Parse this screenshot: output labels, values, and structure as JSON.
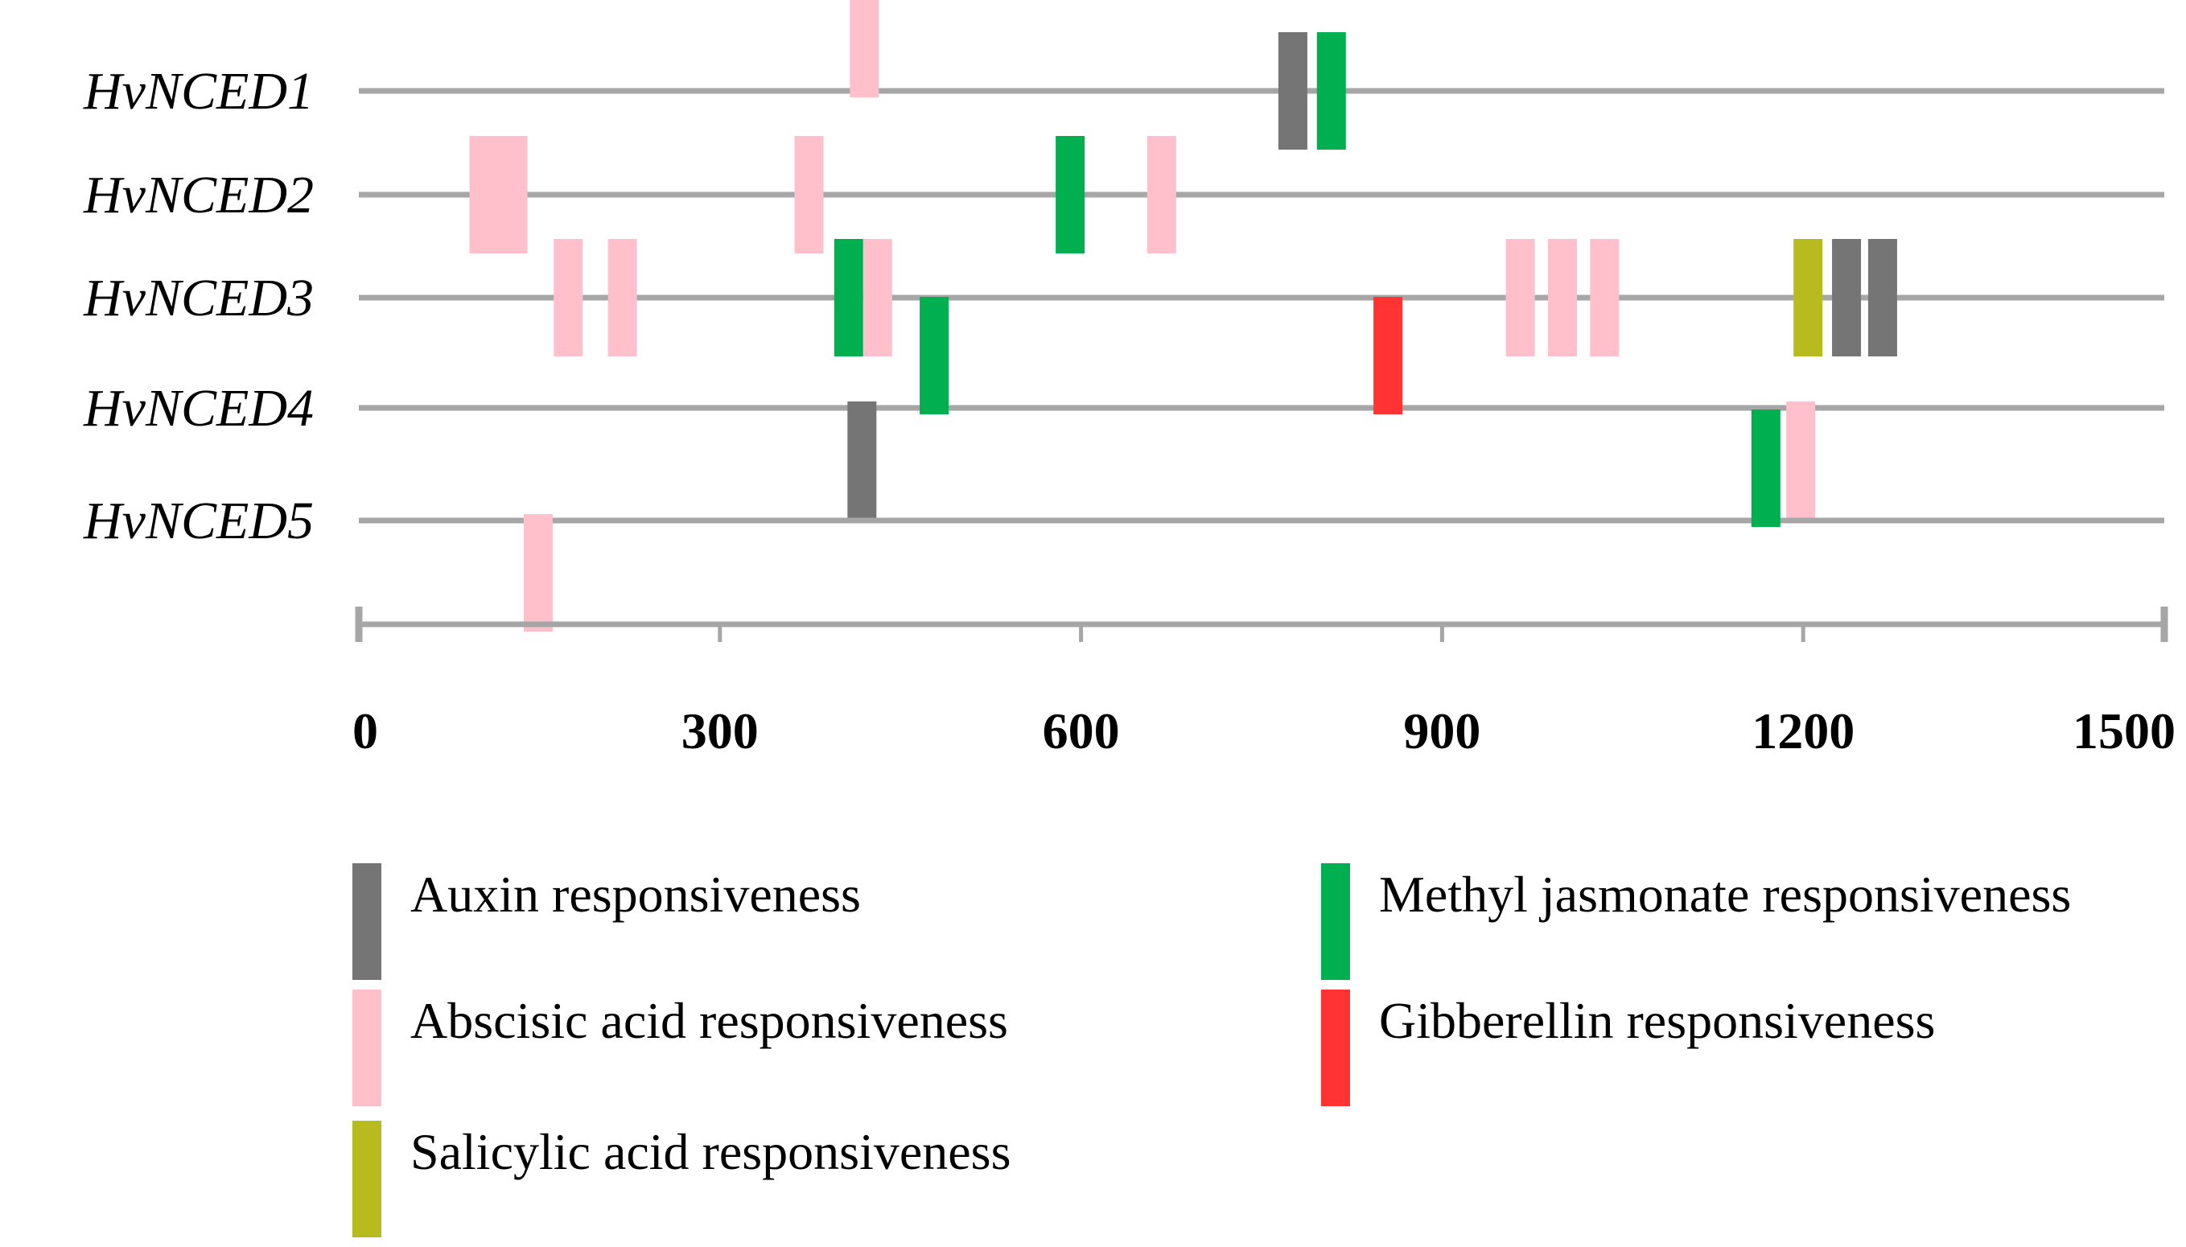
{
  "chart_data": {
    "type": "promoter-element-map",
    "axis": {
      "min": 0,
      "max": 1500,
      "ticks": [
        "0",
        "300",
        "600",
        "900",
        "1200",
        "1500"
      ]
    },
    "categories": {
      "auxin": {
        "label": "Auxin responsiveness",
        "color": "#757575"
      },
      "aba": {
        "label": "Abscisic acid responsiveness",
        "color": "#FFC0CB"
      },
      "sa": {
        "label": "Salicylic acid responsiveness",
        "color": "#B8BB1E"
      },
      "meja": {
        "label": "Methyl jasmonate responsiveness",
        "color": "#00B050"
      },
      "ga": {
        "label": "Gibberellin responsiveness",
        "color": "#FF3333"
      }
    },
    "legend_order": [
      [
        "auxin",
        "aba",
        "sa"
      ],
      [
        "meja",
        "ga"
      ]
    ],
    "genes": [
      {
        "name": "HvNCED1",
        "elements": [
          {
            "type": "aba",
            "pos": 420,
            "side": "above"
          },
          {
            "type": "auxin",
            "pos": 776,
            "side": "center"
          },
          {
            "type": "meja",
            "pos": 808,
            "side": "center"
          }
        ]
      },
      {
        "name": "HvNCED2",
        "elements": [
          {
            "type": "aba",
            "pos": 116,
            "side": "center",
            "wide": true
          },
          {
            "type": "aba",
            "pos": 374,
            "side": "center"
          },
          {
            "type": "meja",
            "pos": 591,
            "side": "center"
          },
          {
            "type": "aba",
            "pos": 667,
            "side": "center"
          }
        ]
      },
      {
        "name": "HvNCED3",
        "elements": [
          {
            "type": "aba",
            "pos": 174,
            "side": "center"
          },
          {
            "type": "aba",
            "pos": 219,
            "side": "center"
          },
          {
            "type": "meja",
            "pos": 407,
            "side": "center"
          },
          {
            "type": "aba",
            "pos": 431,
            "side": "center"
          },
          {
            "type": "aba",
            "pos": 965,
            "side": "center"
          },
          {
            "type": "aba",
            "pos": 1000,
            "side": "center"
          },
          {
            "type": "aba",
            "pos": 1035,
            "side": "center"
          },
          {
            "type": "sa",
            "pos": 1204,
            "side": "center"
          },
          {
            "type": "auxin",
            "pos": 1236,
            "side": "center"
          },
          {
            "type": "auxin",
            "pos": 1266,
            "side": "center"
          }
        ]
      },
      {
        "name": "HvNCED4",
        "elements": [
          {
            "type": "auxin",
            "pos": 418,
            "side": "below"
          },
          {
            "type": "meja",
            "pos": 478,
            "side": "above"
          },
          {
            "type": "ga",
            "pos": 855,
            "side": "above"
          },
          {
            "type": "aba",
            "pos": 1198,
            "side": "below"
          }
        ]
      },
      {
        "name": "HvNCED5",
        "elements": [
          {
            "type": "aba",
            "pos": 149,
            "side": "below"
          },
          {
            "type": "meja",
            "pos": 1169,
            "side": "above"
          }
        ]
      }
    ]
  }
}
